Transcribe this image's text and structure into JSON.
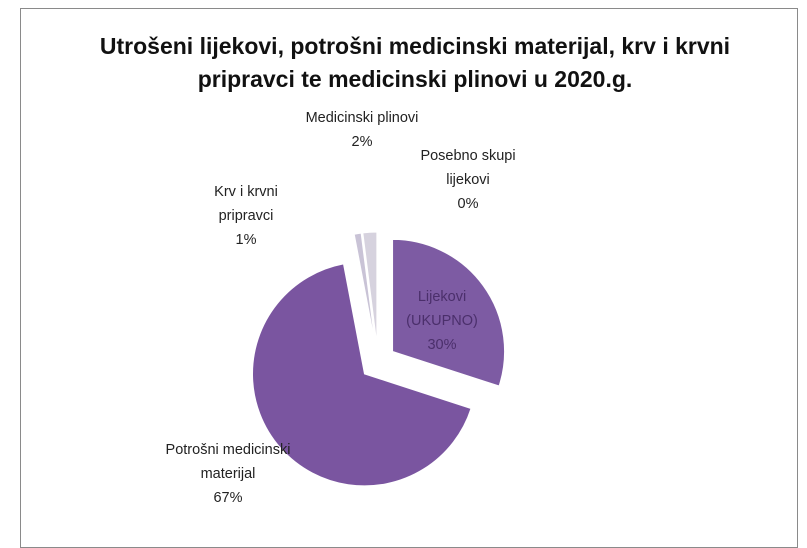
{
  "chart_data": {
    "type": "pie",
    "title": "Utrošeni lijekovi, potrošni medicinski materijal, krv i krvni pripravci te medicinski plinovi u 2020.g.",
    "categories": [
      "Lijekovi (UKUPNO)",
      "Potrošni medicinski materijal",
      "Krv i krvni pripravci",
      "Medicinski plinovi",
      "Posebno skupi lijekovi"
    ],
    "values": [
      30,
      67,
      1,
      2,
      0
    ],
    "value_labels": [
      "30%",
      "67%",
      "1%",
      "2%",
      "0%"
    ],
    "colors": [
      "#7d5ba3",
      "#7a55a0",
      "#c9c3d6",
      "#d6d2de",
      "#b8b0c8"
    ]
  }
}
